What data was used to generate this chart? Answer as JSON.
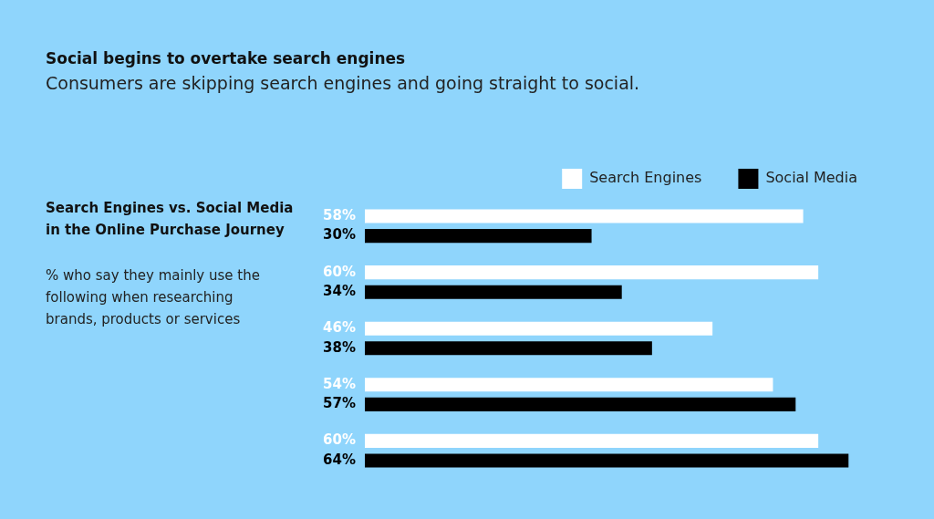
{
  "chart_data": {
    "type": "bar",
    "orientation": "horizontal",
    "title": "Social begins to overtake search engines",
    "subtitle": "Consumers are skipping search engines and going straight to social.",
    "annotations": [
      "Search Engines vs. Social Media in the Online Purchase Journey",
      "% who say they mainly use the following when researching brands, products or services"
    ],
    "categories": [
      null,
      null,
      null,
      null,
      null
    ],
    "series": [
      {
        "name": "Search Engines",
        "color": "#ffffff",
        "values": [
          58,
          60,
          46,
          54,
          60
        ],
        "value_labels": [
          "58%",
          "60%",
          "46%",
          "54%",
          "60%"
        ]
      },
      {
        "name": "Social Media",
        "color": "#000000",
        "values": [
          30,
          34,
          38,
          57,
          64
        ],
        "value_labels": [
          "30%",
          "34%",
          "38%",
          "57%",
          "64%"
        ]
      }
    ],
    "tick_labels": false,
    "legend": "top right"
  }
}
